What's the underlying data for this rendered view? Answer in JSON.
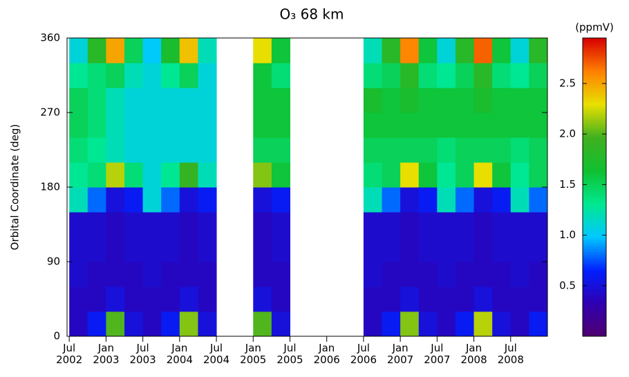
{
  "chart_data": {
    "type": "heatmap",
    "title": "O₃ 68 km",
    "ylabel": "Orbital Coordinate (deg)",
    "colorbar_label": "(ppmV)",
    "xlim": [
      2002.47,
      2009.0
    ],
    "xticks": [
      {
        "value": 2002.5,
        "label": "Jul\n2002"
      },
      {
        "value": 2003.0,
        "label": "Jan\n2003"
      },
      {
        "value": 2003.5,
        "label": "Jul\n2003"
      },
      {
        "value": 2004.0,
        "label": "Jan\n2004"
      },
      {
        "value": 2004.5,
        "label": "Jul\n2004"
      },
      {
        "value": 2005.0,
        "label": "Jan\n2005"
      },
      {
        "value": 2005.5,
        "label": "Jul\n2005"
      },
      {
        "value": 2006.0,
        "label": "Jan\n2006"
      },
      {
        "value": 2006.5,
        "label": "Jul\n2006"
      },
      {
        "value": 2007.0,
        "label": "Jan\n2007"
      },
      {
        "value": 2007.5,
        "label": "Jul\n2007"
      },
      {
        "value": 2008.0,
        "label": "Jan\n2008"
      },
      {
        "value": 2008.5,
        "label": "Jul\n2008"
      }
    ],
    "ylim": [
      0,
      360
    ],
    "yticks": [
      0,
      90,
      180,
      270,
      360
    ],
    "clim": [
      0,
      2.95
    ],
    "cticks": [
      0.5,
      {
        "value": 1.0,
        "label": "1.0"
      },
      1.5,
      {
        "value": 2.0,
        "label": "2.0"
      },
      2.5
    ],
    "colorscale": [
      "#500070",
      "#3000b0",
      "#0020ff",
      "#00c8ff",
      "#00e890",
      "#10c030",
      "#40b020",
      "#e8e000",
      "#ff8000",
      "#d80000"
    ],
    "xbins": [
      2002.5,
      2002.75,
      2003.0,
      2003.25,
      2003.5,
      2003.75,
      2004.0,
      2004.25,
      2004.5,
      2004.75,
      2005.0,
      2005.25,
      2005.5,
      2005.75,
      2006.0,
      2006.25,
      2006.5,
      2006.75,
      2007.0,
      2007.25,
      2007.5,
      2007.75,
      2008.0,
      2008.25,
      2008.5,
      2008.75,
      2009.0
    ],
    "ybins": [
      0,
      30,
      60,
      90,
      120,
      150,
      180,
      210,
      240,
      270,
      300,
      330,
      360
    ],
    "z": [
      [
        0.4,
        0.4,
        0.45,
        0.45,
        0.45,
        1.2,
        1.3,
        1.4,
        1.5,
        1.5,
        1.3,
        1.1
      ],
      [
        0.6,
        0.4,
        0.4,
        0.45,
        0.45,
        0.8,
        1.4,
        1.3,
        1.4,
        1.4,
        1.4,
        1.8
      ],
      [
        2.0,
        0.5,
        0.4,
        0.4,
        0.4,
        0.5,
        2.2,
        1.2,
        1.2,
        1.2,
        1.5,
        2.5
      ],
      [
        0.5,
        0.4,
        0.4,
        0.45,
        0.45,
        0.6,
        1.4,
        1.1,
        1.1,
        1.1,
        1.2,
        1.5
      ],
      [
        0.4,
        0.4,
        0.45,
        0.45,
        0.45,
        1.1,
        1.1,
        1.1,
        1.1,
        1.1,
        1.1,
        1.0
      ],
      [
        0.6,
        0.4,
        0.4,
        0.45,
        0.45,
        0.8,
        1.3,
        1.1,
        1.1,
        1.1,
        1.3,
        1.7
      ],
      [
        2.1,
        0.5,
        0.4,
        0.4,
        0.4,
        0.5,
        1.9,
        1.1,
        1.1,
        1.1,
        1.5,
        2.4
      ],
      [
        0.5,
        0.4,
        0.4,
        0.45,
        0.45,
        0.6,
        1.2,
        1.1,
        1.1,
        1.1,
        1.1,
        1.2
      ],
      null,
      null,
      [
        2.0,
        0.5,
        0.4,
        0.4,
        0.4,
        0.5,
        2.1,
        1.5,
        1.6,
        1.6,
        1.6,
        2.3
      ],
      [
        0.5,
        0.4,
        0.4,
        0.45,
        0.45,
        0.6,
        1.6,
        1.5,
        1.6,
        1.6,
        1.4,
        1.6
      ],
      null,
      null,
      null,
      null,
      [
        0.4,
        0.4,
        0.45,
        0.45,
        0.45,
        1.2,
        1.4,
        1.5,
        1.6,
        1.7,
        1.4,
        1.2
      ],
      [
        0.6,
        0.4,
        0.4,
        0.45,
        0.45,
        0.8,
        1.5,
        1.5,
        1.6,
        1.6,
        1.5,
        1.8
      ],
      [
        2.1,
        0.5,
        0.4,
        0.4,
        0.4,
        0.5,
        2.3,
        1.5,
        1.6,
        1.7,
        1.8,
        2.6
      ],
      [
        0.5,
        0.4,
        0.4,
        0.45,
        0.45,
        0.6,
        1.6,
        1.5,
        1.6,
        1.6,
        1.4,
        1.6
      ],
      [
        0.4,
        0.4,
        0.45,
        0.45,
        0.45,
        1.2,
        1.3,
        1.4,
        1.6,
        1.6,
        1.3,
        1.1
      ],
      [
        0.6,
        0.4,
        0.4,
        0.45,
        0.45,
        0.8,
        1.5,
        1.5,
        1.6,
        1.6,
        1.5,
        1.8
      ],
      [
        2.2,
        0.5,
        0.4,
        0.4,
        0.4,
        0.5,
        2.3,
        1.5,
        1.6,
        1.7,
        1.8,
        2.7
      ],
      [
        0.5,
        0.4,
        0.4,
        0.45,
        0.45,
        0.6,
        1.6,
        1.5,
        1.6,
        1.6,
        1.4,
        1.6
      ],
      [
        0.4,
        0.4,
        0.45,
        0.45,
        0.45,
        1.2,
        1.3,
        1.4,
        1.6,
        1.6,
        1.3,
        1.1
      ],
      [
        0.6,
        0.4,
        0.4,
        0.45,
        0.45,
        0.8,
        1.5,
        1.5,
        1.6,
        1.6,
        1.5,
        1.8
      ]
    ]
  }
}
